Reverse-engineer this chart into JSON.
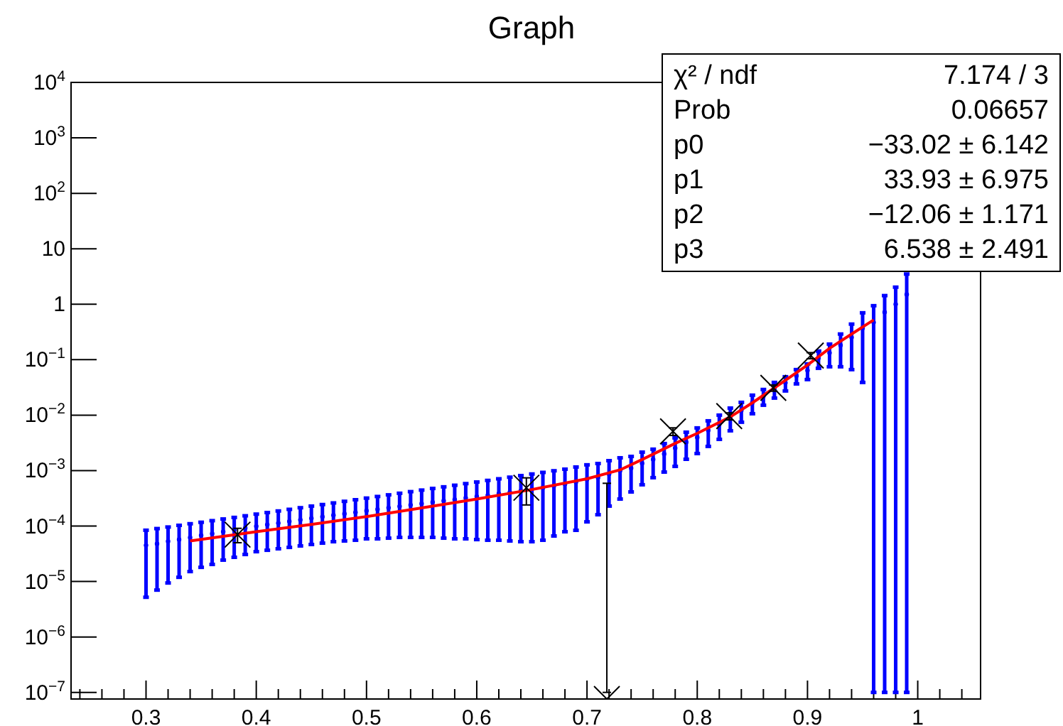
{
  "chart_data": {
    "type": "scatter",
    "title": "Graph",
    "log": "y",
    "grid": false,
    "xlim": [
      0.232,
      1.057
    ],
    "ylim": [
      7.6e-08,
      10000
    ],
    "xticks": [
      {
        "value": 0.24,
        "label": null
      },
      {
        "value": 0.26,
        "label": null
      },
      {
        "value": 0.28,
        "label": null
      },
      0.3,
      {
        "value": 0.32,
        "label": null
      },
      {
        "value": 0.34,
        "label": null
      },
      {
        "value": 0.36,
        "label": null
      },
      {
        "value": 0.38,
        "label": null
      },
      0.4,
      {
        "value": 0.42,
        "label": null
      },
      {
        "value": 0.44,
        "label": null
      },
      {
        "value": 0.46,
        "label": null
      },
      {
        "value": 0.48,
        "label": null
      },
      0.5,
      {
        "value": 0.52,
        "label": null
      },
      {
        "value": 0.54,
        "label": null
      },
      {
        "value": 0.56,
        "label": null
      },
      {
        "value": 0.58,
        "label": null
      },
      0.6,
      {
        "value": 0.62,
        "label": null
      },
      {
        "value": 0.64,
        "label": null
      },
      {
        "value": 0.66,
        "label": null
      },
      {
        "value": 0.68,
        "label": null
      },
      0.7,
      {
        "value": 0.72,
        "label": null
      },
      {
        "value": 0.74,
        "label": null
      },
      {
        "value": 0.76,
        "label": null
      },
      {
        "value": 0.78,
        "label": null
      },
      0.8,
      {
        "value": 0.82,
        "label": null
      },
      {
        "value": 0.84,
        "label": null
      },
      {
        "value": 0.86,
        "label": null
      },
      {
        "value": 0.88,
        "label": null
      },
      0.9,
      {
        "value": 0.92,
        "label": null
      },
      {
        "value": 0.94,
        "label": null
      },
      {
        "value": 0.96,
        "label": null
      },
      {
        "value": 0.98,
        "label": null
      },
      {
        "value": 1,
        "label": "1"
      },
      {
        "value": 1.02,
        "label": null
      },
      {
        "value": 1.04,
        "label": null
      }
    ],
    "yticks": [
      {
        "value": 1e-07,
        "label": "10$^{−7}$"
      },
      {
        "value": 1e-06,
        "label": "10$^{−6}$"
      },
      {
        "value": 1e-05,
        "label": "10$^{−5}$"
      },
      {
        "value": 0.0001,
        "label": "10$^{−4}$"
      },
      {
        "value": 0.001,
        "label": "10$^{−3}$"
      },
      {
        "value": 0.01,
        "label": "10$^{−2}$"
      },
      {
        "value": 0.1,
        "label": "10$^{−1}$"
      },
      1,
      10,
      {
        "value": 100,
        "label": "10$^{2}$"
      },
      {
        "value": 1000,
        "label": "10$^{3}$"
      },
      {
        "value": 10000,
        "label": "10$^{4}$"
      }
    ],
    "annotations": [
      "χ² / ndf",
      "7.174 / 3",
      "Prob",
      "0.06657",
      "p0",
      "−33.02 ± 6.142",
      "p1",
      "33.93 ± 6.975",
      "p2",
      "−12.06 ± 1.171",
      "p3",
      "6.538 ± 2.491"
    ],
    "series": [
      {
        "marker": "circle",
        "color": "#0000ff",
        "x": [
          0.3,
          0.31,
          0.32,
          0.33,
          0.34,
          0.35,
          0.36,
          0.37,
          0.38,
          0.39,
          0.4,
          0.41,
          0.42,
          0.43,
          0.44,
          0.45,
          0.46,
          0.47,
          0.48,
          0.49,
          0.5,
          0.51,
          0.52,
          0.53,
          0.54,
          0.55,
          0.56,
          0.57,
          0.58,
          0.59,
          0.6,
          0.61,
          0.62,
          0.63,
          0.64,
          0.65,
          0.66,
          0.67,
          0.68,
          0.69,
          0.7,
          0.71,
          0.72,
          0.73,
          0.74,
          0.75,
          0.76,
          0.77,
          0.78,
          0.79,
          0.8,
          0.81,
          0.82,
          0.83,
          0.84,
          0.85,
          0.86,
          0.87,
          0.88,
          0.89,
          0.9,
          0.91,
          0.92,
          0.93,
          0.94,
          0.95,
          0.96,
          0.97,
          0.98,
          0.99
        ],
        "values": [
          4.5e-05,
          4.8e-05,
          5.3e-05,
          5.7e-05,
          6.2e-05,
          6.8e-05,
          7.3e-05,
          7.9e-05,
          8.5e-05,
          9.2e-05,
          9.9e-05,
          0.000106,
          0.000113,
          0.000121,
          0.000129,
          0.000138,
          0.000147,
          0.000157,
          0.000166,
          0.000177,
          0.000189,
          0.0002,
          0.000213,
          0.000226,
          0.00024,
          0.000254,
          0.000269,
          0.000285,
          0.000301,
          0.00032,
          0.00034,
          0.00036,
          0.000383,
          0.000407,
          0.000432,
          0.00046,
          0.000492,
          0.000529,
          0.00057,
          0.000622,
          0.000695,
          0.00075,
          0.00087,
          0.001,
          0.00111,
          0.00135,
          0.00159,
          0.002,
          0.00254,
          0.00326,
          0.00396,
          0.00531,
          0.00683,
          0.00931,
          0.0122,
          0.0168,
          0.022,
          0.0296,
          0.0383,
          0.0514,
          0.0638,
          0.107,
          0.133,
          0.182,
          0.252,
          0.37,
          0.47,
          0.72,
          1.0,
          1.5
        ],
        "errors": [
          [
            5.2e-06,
            8.4e-05
          ],
          [
            7e-06,
            9e-05
          ],
          [
            9.4e-06,
            9.6e-05
          ],
          [
            1.19e-05,
            0.000103
          ],
          [
            1.51e-05,
            0.00011
          ],
          [
            1.8e-05,
            0.000117
          ],
          [
            2.03e-05,
            0.000125
          ],
          [
            2.43e-05,
            0.000134
          ],
          [
            2.73e-05,
            0.000143
          ],
          [
            3.07e-05,
            0.000153
          ],
          [
            3.45e-05,
            0.000164
          ],
          [
            3.66e-05,
            0.000175
          ],
          [
            3.89e-05,
            0.000187
          ],
          [
            4.12e-05,
            0.0002
          ],
          [
            4.38e-05,
            0.000214
          ],
          [
            4.65e-05,
            0.000229
          ],
          [
            4.92e-05,
            0.000244
          ],
          [
            5.22e-05,
            0.000261
          ],
          [
            5.38e-05,
            0.000279
          ],
          [
            5.55e-05,
            0.000298
          ],
          [
            5.88e-05,
            0.000319
          ],
          [
            5.88e-05,
            0.000341
          ],
          [
            6.05e-05,
            0.000365
          ],
          [
            6.24e-05,
            0.00039
          ],
          [
            6.24e-05,
            0.000417
          ],
          [
            6.24e-05,
            0.000445
          ],
          [
            6.24e-05,
            0.000476
          ],
          [
            6.05e-05,
            0.000509
          ],
          [
            5.88e-05,
            0.000544
          ],
          [
            5.88e-05,
            0.000582
          ],
          [
            5.7e-05,
            0.000622
          ],
          [
            5.55e-05,
            0.000665
          ],
          [
            5.55e-05,
            0.000711
          ],
          [
            5.38e-05,
            0.00076
          ],
          [
            5.22e-05,
            0.000812
          ],
          [
            5.22e-05,
            0.000868
          ],
          [
            5.55e-05,
            0.000928
          ],
          [
            6.62e-05,
            0.000992
          ],
          [
            7.89e-05,
            0.00106
          ],
          [
            8.38e-05,
            0.00116
          ],
          [
            0.000119,
            0.00127
          ],
          [
            0.00016,
            0.00134
          ],
          [
            0.000229,
            0.00151
          ],
          [
            0.000307,
            0.0017
          ],
          [
            0.000412,
            0.0018
          ],
          [
            0.000555,
            0.00215
          ],
          [
            0.000745,
            0.00243
          ],
          [
            0.00094,
            0.00307
          ],
          [
            0.00119,
            0.00389
          ],
          [
            0.0016,
            0.00492
          ],
          [
            0.00203,
            0.00588
          ],
          [
            0.00273,
            0.00789
          ],
          [
            0.00366,
            0.01
          ],
          [
            0.00522,
            0.0134
          ],
          [
            0.00745,
            0.017
          ],
          [
            0.0106,
            0.0229
          ],
          [
            0.0151,
            0.029
          ],
          [
            0.0203,
            0.0389
          ],
          [
            0.0273,
            0.0492
          ],
          [
            0.0366,
            0.0662
          ],
          [
            0.0438,
            0.0838
          ],
          [
            0.07,
            0.143
          ],
          [
            0.0745,
            0.191
          ],
          [
            0.0745,
            0.29
          ],
          [
            0.0662,
            0.438
          ],
          [
            0.0389,
            0.7
          ],
          [
            1e-07,
            0.94
          ],
          [
            1e-07,
            1.43
          ],
          [
            1e-07,
            2.03
          ],
          [
            1e-07,
            3.5
          ]
        ]
      },
      {
        "type": "line",
        "marker": "none",
        "color": "#ff0000",
        "x": [
          0.34,
          0.4,
          0.45,
          0.5,
          0.55,
          0.6,
          0.65,
          0.7,
          0.73,
          0.75,
          0.78,
          0.8,
          0.83,
          0.85,
          0.87,
          0.9,
          0.92,
          0.94,
          0.96
        ],
        "values": [
          5.4e-05,
          7.9e-05,
          0.000107,
          0.000148,
          0.000212,
          0.000307,
          0.000455,
          0.00071,
          0.00103,
          0.00158,
          0.0031,
          0.0047,
          0.0093,
          0.0167,
          0.031,
          0.08,
          0.16,
          0.29,
          0.52
        ]
      },
      {
        "marker": "cross",
        "color": "#000000",
        "x": [
          0.383,
          0.645,
          0.718,
          0.778,
          0.829,
          0.869,
          0.903
        ],
        "values": [
          7e-05,
          0.00049,
          7.6e-08,
          0.0051,
          0.0096,
          0.031,
          0.119
        ],
        "errors": [
          [
            5e-05,
            9.1e-05
          ],
          [
            0.00024,
            0.00074
          ],
          [
            1e-07,
            0.00059
          ],
          [
            0.0043,
            0.0059
          ],
          [
            0.0082,
            0.011
          ],
          [
            0.027,
            0.035
          ],
          [
            0.104,
            0.134
          ]
        ]
      }
    ]
  }
}
